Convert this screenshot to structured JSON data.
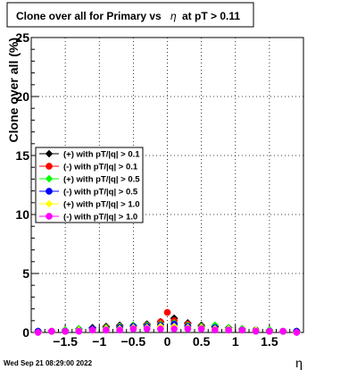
{
  "chart_data": {
    "type": "scatter",
    "title_parts": [
      "Clone  over all for Primary vs",
      "η",
      "at pT > 0.11"
    ],
    "xlabel": "η",
    "ylabel": "Clone  over all (%)",
    "xlim": [
      -2.0,
      2.0
    ],
    "ylim": [
      0,
      25
    ],
    "x_ticks": [
      -1.5,
      -1,
      -0.5,
      0,
      0.5,
      1,
      1.5
    ],
    "x_tick_labels": [
      "−1.5",
      "−1",
      "−0.5",
      "0",
      "0.5",
      "1",
      "1.5"
    ],
    "y_ticks": [
      0,
      5,
      10,
      15,
      20,
      25
    ],
    "y_tick_labels": [
      "0",
      "5",
      "10",
      "15",
      "20",
      "25"
    ],
    "grid": true,
    "legend_position": "left-middle",
    "footer": "Wed Sep 21 08:29:00 2022",
    "series": [
      {
        "name": "(+) with pT/|q| > 0.1",
        "color": "#000000",
        "x": [
          -1.9,
          -1.7,
          -1.5,
          -1.3,
          -1.1,
          -0.9,
          -0.7,
          -0.5,
          -0.3,
          -0.1,
          0.1,
          0.3,
          0.5,
          0.7,
          0.9,
          1.1,
          1.3,
          1.5,
          1.7,
          1.9
        ],
        "y": [
          0.1,
          0.1,
          0.2,
          0.3,
          0.4,
          0.5,
          0.6,
          0.6,
          0.7,
          0.9,
          1.2,
          0.8,
          0.6,
          0.5,
          0.4,
          0.3,
          0.2,
          0.2,
          0.1,
          0.1
        ]
      },
      {
        "name": "(-) with pT/|q| > 0.1",
        "color": "#ff0000",
        "x": [
          -1.9,
          -1.7,
          -1.5,
          -1.3,
          -1.1,
          -0.9,
          -0.7,
          -0.5,
          -0.3,
          -0.1,
          0.0,
          0.1,
          0.3,
          0.5,
          0.7,
          0.9,
          1.1,
          1.3,
          1.5,
          1.7,
          1.9
        ],
        "y": [
          0.1,
          0.1,
          0.1,
          0.2,
          0.3,
          0.4,
          0.5,
          0.5,
          0.6,
          0.9,
          1.7,
          1.0,
          0.7,
          0.5,
          0.4,
          0.3,
          0.2,
          0.2,
          0.1,
          0.1,
          0.1
        ]
      },
      {
        "name": "(+) with pT/|q| > 0.5",
        "color": "#00ff00",
        "x": [
          -1.9,
          -1.7,
          -1.5,
          -1.3,
          -1.1,
          -0.9,
          -0.7,
          -0.5,
          -0.3,
          -0.1,
          0.1,
          0.3,
          0.5,
          0.7,
          0.9,
          1.1,
          1.3,
          1.5,
          1.7,
          1.9
        ],
        "y": [
          0.1,
          0.1,
          0.2,
          0.3,
          0.3,
          0.4,
          0.5,
          0.6,
          0.6,
          0.7,
          0.8,
          0.6,
          0.5,
          0.6,
          0.4,
          0.3,
          0.2,
          0.2,
          0.1,
          0.1
        ]
      },
      {
        "name": "(-) with pT/|q| > 0.5",
        "color": "#0000ff",
        "x": [
          -1.9,
          -1.7,
          -1.5,
          -1.3,
          -1.1,
          -0.9,
          -0.7,
          -0.5,
          -0.3,
          -0.1,
          0.1,
          0.3,
          0.5,
          0.7,
          0.9,
          1.1,
          1.3,
          1.5,
          1.7,
          1.9
        ],
        "y": [
          0.1,
          0.1,
          0.1,
          0.2,
          0.3,
          0.3,
          0.4,
          0.5,
          0.5,
          0.6,
          0.7,
          0.5,
          0.4,
          0.4,
          0.3,
          0.2,
          0.2,
          0.1,
          0.1,
          0.1
        ]
      },
      {
        "name": "(+) with pT/|q| > 1.0",
        "color": "#ffff00",
        "x": [
          -1.9,
          -1.7,
          -1.5,
          -1.3,
          -1.1,
          -0.9,
          -0.7,
          -0.5,
          -0.3,
          -0.1,
          0.1,
          0.3,
          0.5,
          0.7,
          0.9,
          1.1,
          1.3,
          1.5,
          1.7,
          1.9
        ],
        "y": [
          0.0,
          0.1,
          0.1,
          0.2,
          0.2,
          0.3,
          0.3,
          0.4,
          0.4,
          0.5,
          0.5,
          0.4,
          0.4,
          0.3,
          0.3,
          0.2,
          0.2,
          0.1,
          0.1,
          0.0
        ]
      },
      {
        "name": "(-) with pT/|q| > 1.0",
        "color": "#ff00ff",
        "x": [
          -1.9,
          -1.7,
          -1.5,
          -1.3,
          -1.1,
          -0.9,
          -0.7,
          -0.5,
          -0.3,
          -0.1,
          0.1,
          0.3,
          0.5,
          0.7,
          0.9,
          1.1,
          1.3,
          1.5,
          1.7,
          1.9
        ],
        "y": [
          0.0,
          0.1,
          0.1,
          0.1,
          0.2,
          0.2,
          0.2,
          0.3,
          0.3,
          0.3,
          0.3,
          0.3,
          0.3,
          0.2,
          0.2,
          0.2,
          0.1,
          0.1,
          0.1,
          0.0
        ]
      }
    ]
  }
}
